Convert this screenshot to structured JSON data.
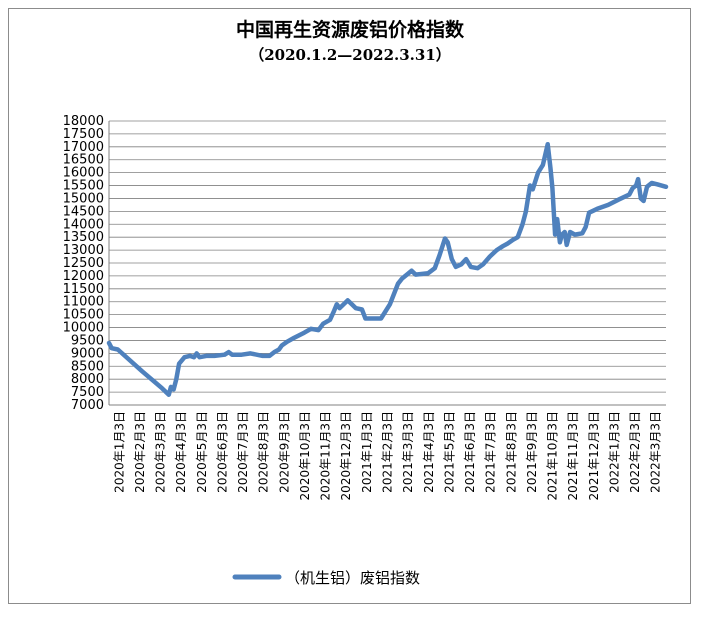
{
  "chart_data": {
    "type": "line",
    "title": "中国再生资源废铝价格指数",
    "subtitle": "（2020.1.2—2022.3.31）",
    "xlabel": "",
    "ylabel": "",
    "ylim": [
      7000,
      18000
    ],
    "y_ticks": [
      7000,
      7500,
      8000,
      8500,
      9000,
      9500,
      10000,
      10500,
      11000,
      11500,
      12000,
      12500,
      13000,
      13500,
      14000,
      14500,
      15000,
      15500,
      16000,
      16500,
      17000,
      17500,
      18000
    ],
    "x_tick_labels": [
      "2020年1月3日",
      "2020年2月3日",
      "2020年3月3日",
      "2020年4月3日",
      "2020年5月3日",
      "2020年6月3日",
      "2020年7月3日",
      "2020年8月3日",
      "2020年9月3日",
      "2020年10月3日",
      "2020年11月3日",
      "2020年12月3日",
      "2021年1月3日",
      "2021年2月3日",
      "2021年3月3日",
      "2021年4月3日",
      "2021年5月3日",
      "2021年6月3日",
      "2021年7月3日",
      "2021年8月3日",
      "2021年9月3日",
      "2021年10月3日",
      "2021年11月3日",
      "2021年12月3日",
      "2022年1月3日",
      "2022年2月3日",
      "2022年3月3日"
    ],
    "grid": true,
    "legend": "bottom",
    "series": [
      {
        "name": "（机生铝）废铝指数",
        "color": "#4f81bd",
        "points": [
          [
            "2020-01-02",
            9400
          ],
          [
            "2020-01-06",
            9200
          ],
          [
            "2020-01-15",
            9150
          ],
          [
            "2020-02-20",
            8300
          ],
          [
            "2020-03-20",
            7650
          ],
          [
            "2020-03-30",
            7400
          ],
          [
            "2020-04-02",
            7700
          ],
          [
            "2020-04-06",
            7600
          ],
          [
            "2020-04-10",
            8000
          ],
          [
            "2020-04-14",
            8600
          ],
          [
            "2020-04-22",
            8850
          ],
          [
            "2020-04-30",
            8900
          ],
          [
            "2020-05-06",
            8850
          ],
          [
            "2020-05-10",
            9000
          ],
          [
            "2020-05-14",
            8850
          ],
          [
            "2020-05-24",
            8900
          ],
          [
            "2020-06-05",
            8900
          ],
          [
            "2020-06-20",
            8950
          ],
          [
            "2020-06-26",
            9050
          ],
          [
            "2020-07-01",
            8950
          ],
          [
            "2020-07-15",
            8950
          ],
          [
            "2020-07-28",
            9000
          ],
          [
            "2020-08-15",
            8900
          ],
          [
            "2020-08-25",
            8900
          ],
          [
            "2020-09-01",
            9050
          ],
          [
            "2020-09-08",
            9150
          ],
          [
            "2020-09-12",
            9300
          ],
          [
            "2020-09-20",
            9450
          ],
          [
            "2020-09-30",
            9600
          ],
          [
            "2020-10-15",
            9800
          ],
          [
            "2020-10-25",
            9950
          ],
          [
            "2020-11-05",
            9900
          ],
          [
            "2020-11-12",
            10150
          ],
          [
            "2020-11-22",
            10300
          ],
          [
            "2020-11-28",
            10650
          ],
          [
            "2020-12-02",
            10900
          ],
          [
            "2020-12-06",
            10750
          ],
          [
            "2020-12-12",
            10900
          ],
          [
            "2020-12-18",
            11050
          ],
          [
            "2020-12-24",
            10900
          ],
          [
            "2020-12-30",
            10750
          ],
          [
            "2021-01-08",
            10700
          ],
          [
            "2021-01-13",
            10350
          ],
          [
            "2021-02-05",
            10350
          ],
          [
            "2021-02-18",
            10900
          ],
          [
            "2021-03-02",
            11700
          ],
          [
            "2021-03-08",
            11900
          ],
          [
            "2021-03-15",
            12050
          ],
          [
            "2021-03-22",
            12200
          ],
          [
            "2021-03-28",
            12050
          ],
          [
            "2021-04-15",
            12100
          ],
          [
            "2021-04-25",
            12300
          ],
          [
            "2021-05-02",
            12800
          ],
          [
            "2021-05-10",
            13450
          ],
          [
            "2021-05-14",
            13300
          ],
          [
            "2021-05-20",
            12650
          ],
          [
            "2021-05-26",
            12350
          ],
          [
            "2021-06-03",
            12450
          ],
          [
            "2021-06-10",
            12650
          ],
          [
            "2021-06-17",
            12350
          ],
          [
            "2021-06-27",
            12300
          ],
          [
            "2021-07-05",
            12450
          ],
          [
            "2021-07-15",
            12750
          ],
          [
            "2021-07-25",
            13000
          ],
          [
            "2021-08-03",
            13150
          ],
          [
            "2021-08-10",
            13250
          ],
          [
            "2021-08-18",
            13400
          ],
          [
            "2021-08-25",
            13500
          ],
          [
            "2021-09-01",
            14000
          ],
          [
            "2021-09-06",
            14500
          ],
          [
            "2021-09-12",
            15500
          ],
          [
            "2021-09-16",
            15350
          ],
          [
            "2021-09-24",
            16000
          ],
          [
            "2021-10-01",
            16300
          ],
          [
            "2021-10-08",
            17100
          ],
          [
            "2021-10-12",
            16200
          ],
          [
            "2021-10-15",
            15400
          ],
          [
            "2021-10-19",
            13600
          ],
          [
            "2021-10-22",
            14200
          ],
          [
            "2021-10-26",
            13300
          ],
          [
            "2021-10-29",
            13600
          ],
          [
            "2021-11-02",
            13700
          ],
          [
            "2021-11-05",
            13200
          ],
          [
            "2021-11-10",
            13700
          ],
          [
            "2021-11-17",
            13600
          ],
          [
            "2021-11-28",
            13650
          ],
          [
            "2021-12-03",
            13900
          ],
          [
            "2021-12-08",
            14450
          ],
          [
            "2021-12-20",
            14600
          ],
          [
            "2022-01-05",
            14750
          ],
          [
            "2022-01-20",
            14950
          ],
          [
            "2022-02-05",
            15150
          ],
          [
            "2022-02-10",
            15400
          ],
          [
            "2022-02-15",
            15500
          ],
          [
            "2022-02-18",
            15750
          ],
          [
            "2022-02-22",
            15000
          ],
          [
            "2022-02-26",
            14900
          ],
          [
            "2022-03-03",
            15450
          ],
          [
            "2022-03-10",
            15600
          ],
          [
            "2022-03-18",
            15550
          ],
          [
            "2022-03-31",
            15450
          ]
        ]
      }
    ]
  }
}
